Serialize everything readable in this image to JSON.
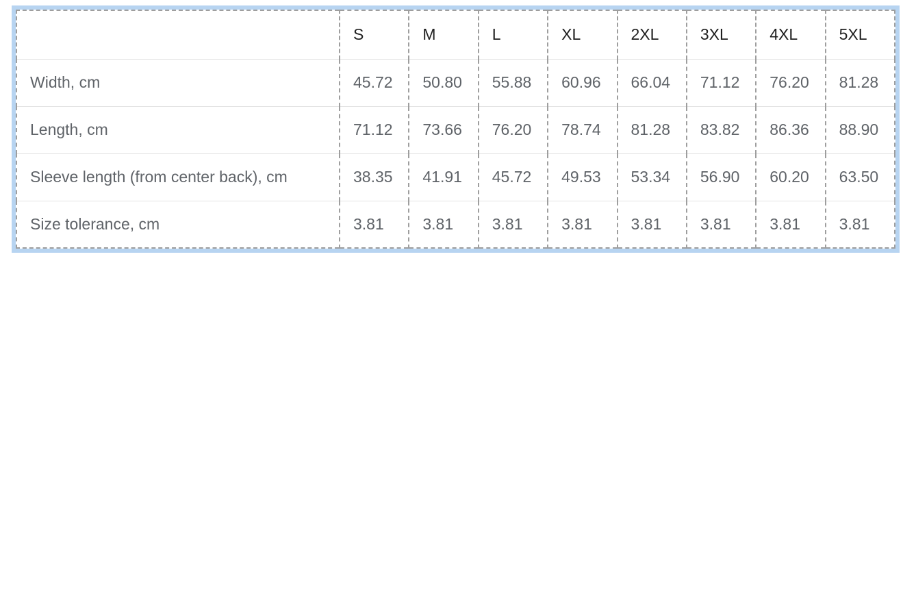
{
  "size_chart": {
    "corner_label": "",
    "header": [
      "S",
      "M",
      "L",
      "XL",
      "2XL",
      "3XL",
      "4XL",
      "5XL"
    ],
    "rows": [
      {
        "label": "Width, cm",
        "values": [
          "45.72",
          "50.80",
          "55.88",
          "60.96",
          "66.04",
          "71.12",
          "76.20",
          "81.28"
        ]
      },
      {
        "label": "Length, cm",
        "values": [
          "71.12",
          "73.66",
          "76.20",
          "78.74",
          "81.28",
          "83.82",
          "86.36",
          "88.90"
        ]
      },
      {
        "label": "Sleeve length (from center back), cm",
        "values": [
          "38.35",
          "41.91",
          "45.72",
          "49.53",
          "53.34",
          "56.90",
          "60.20",
          "63.50"
        ]
      },
      {
        "label": "Size tolerance, cm",
        "values": [
          "3.81",
          "3.81",
          "3.81",
          "3.81",
          "3.81",
          "3.81",
          "3.81",
          "3.81"
        ]
      }
    ]
  },
  "colors": {
    "selection_outline": "#b7d4f1",
    "table_dashed_border": "#9e9e9e",
    "row_divider": "#e3e3e3",
    "header_text": "#1f1f1f",
    "cell_text": "#5f6368"
  }
}
